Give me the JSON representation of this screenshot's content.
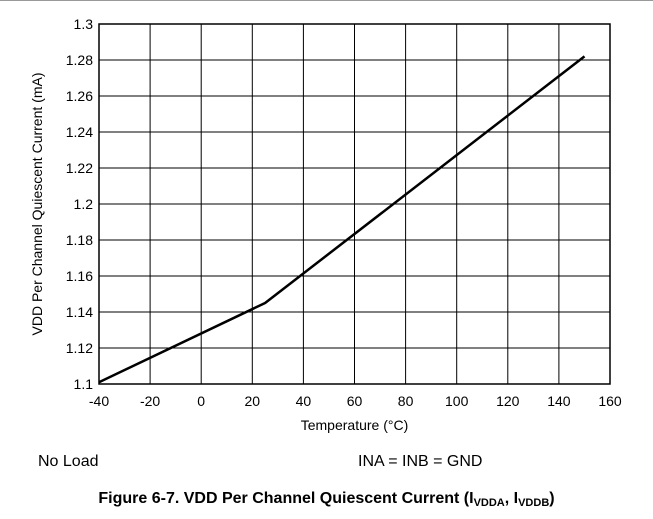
{
  "chart_data": {
    "type": "line",
    "xlabel": "Temperature (°C)",
    "ylabel": "VDD Per Channel Quiescent Current (mA)",
    "xlim": [
      -40,
      160
    ],
    "ylim": [
      1.1,
      1.3
    ],
    "xticks": [
      "-40",
      "-20",
      "0",
      "20",
      "40",
      "60",
      "80",
      "100",
      "120",
      "140",
      "160"
    ],
    "yticks": [
      "1.1",
      "1.12",
      "1.14",
      "1.16",
      "1.18",
      "1.2",
      "1.22",
      "1.24",
      "1.26",
      "1.28",
      "1.3"
    ],
    "grid": true,
    "series": [
      {
        "x": [
          -40,
          25,
          150
        ],
        "y": [
          1.101,
          1.145,
          1.282
        ]
      }
    ],
    "line_color": "#000000"
  },
  "notes": {
    "left": "No Load",
    "right": "INA = INB = GND"
  },
  "caption": {
    "prefix": "Figure 6-7. VDD Per Channel Quiescent Current (I",
    "sub1": "VDDA",
    "mid": ", I",
    "sub2": "VDDB",
    "suffix": ")"
  }
}
